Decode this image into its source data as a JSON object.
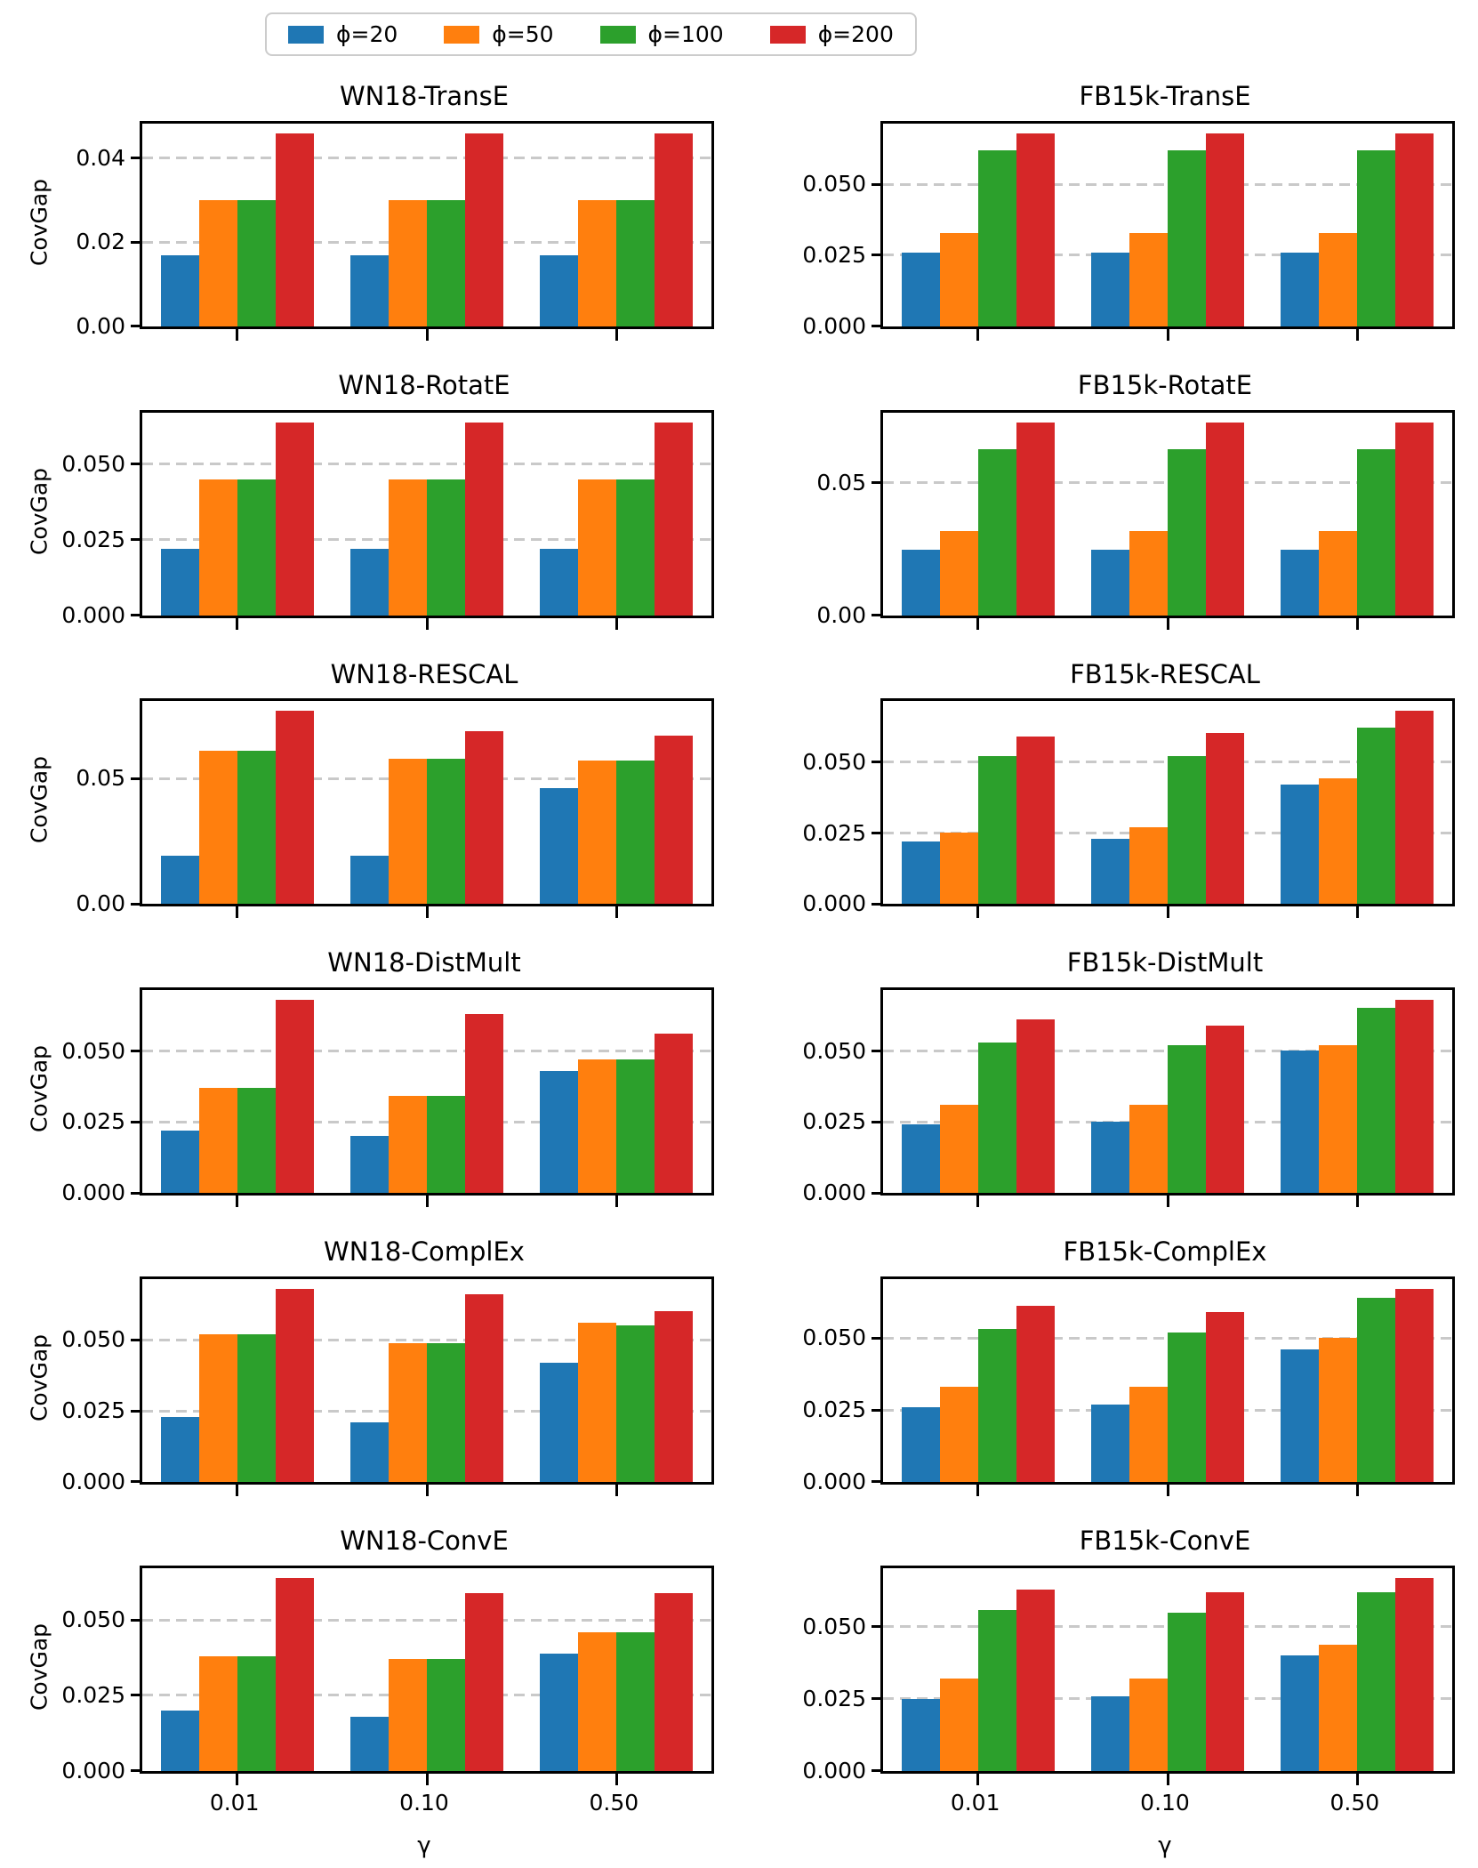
{
  "figure": {
    "ylabel": "CovGap",
    "xlabel": "γ",
    "grid_color": "#c9c9c9",
    "legend": [
      {
        "label": "ϕ=20",
        "color": "#1f77b4"
      },
      {
        "label": "ϕ=50",
        "color": "#ff7f0e"
      },
      {
        "label": "ϕ=100",
        "color": "#2ca02c"
      },
      {
        "label": "ϕ=200",
        "color": "#d62728"
      }
    ]
  },
  "chart_data": [
    {
      "type": "bar",
      "title": "WN18-TransE",
      "column": "left",
      "categories": [
        "0.01",
        "0.10",
        "0.50"
      ],
      "ylim": [
        0,
        0.0483
      ],
      "yticks": [
        0,
        0.02,
        0.04
      ],
      "ytick_labels": [
        "0.00",
        "0.02",
        "0.04"
      ],
      "series": [
        {
          "name": "ϕ=20",
          "color": "#1f77b4",
          "values": [
            0.017,
            0.017,
            0.017
          ]
        },
        {
          "name": "ϕ=50",
          "color": "#ff7f0e",
          "values": [
            0.03,
            0.03,
            0.03
          ]
        },
        {
          "name": "ϕ=100",
          "color": "#2ca02c",
          "values": [
            0.03,
            0.03,
            0.03
          ]
        },
        {
          "name": "ϕ=200",
          "color": "#d62728",
          "values": [
            0.046,
            0.046,
            0.046
          ]
        }
      ]
    },
    {
      "type": "bar",
      "title": "FB15k-TransE",
      "column": "right",
      "categories": [
        "0.01",
        "0.10",
        "0.50"
      ],
      "ylim": [
        0,
        0.0714
      ],
      "yticks": [
        0,
        0.025,
        0.05
      ],
      "ytick_labels": [
        "0.000",
        "0.025",
        "0.050"
      ],
      "series": [
        {
          "name": "ϕ=20",
          "color": "#1f77b4",
          "values": [
            0.026,
            0.026,
            0.026
          ]
        },
        {
          "name": "ϕ=50",
          "color": "#ff7f0e",
          "values": [
            0.033,
            0.033,
            0.033
          ]
        },
        {
          "name": "ϕ=100",
          "color": "#2ca02c",
          "values": [
            0.062,
            0.062,
            0.062
          ]
        },
        {
          "name": "ϕ=200",
          "color": "#d62728",
          "values": [
            0.068,
            0.068,
            0.068
          ]
        }
      ]
    },
    {
      "type": "bar",
      "title": "WN18-RotatE",
      "column": "left",
      "categories": [
        "0.01",
        "0.10",
        "0.50"
      ],
      "ylim": [
        0,
        0.0672
      ],
      "yticks": [
        0,
        0.025,
        0.05
      ],
      "ytick_labels": [
        "0.000",
        "0.025",
        "0.050"
      ],
      "series": [
        {
          "name": "ϕ=20",
          "color": "#1f77b4",
          "values": [
            0.022,
            0.022,
            0.022
          ]
        },
        {
          "name": "ϕ=50",
          "color": "#ff7f0e",
          "values": [
            0.045,
            0.045,
            0.045
          ]
        },
        {
          "name": "ϕ=100",
          "color": "#2ca02c",
          "values": [
            0.045,
            0.045,
            0.045
          ]
        },
        {
          "name": "ϕ=200",
          "color": "#d62728",
          "values": [
            0.064,
            0.064,
            0.064
          ]
        }
      ]
    },
    {
      "type": "bar",
      "title": "FB15k-RotatE",
      "column": "right",
      "categories": [
        "0.01",
        "0.10",
        "0.50"
      ],
      "ylim": [
        0,
        0.0767
      ],
      "yticks": [
        0,
        0.05
      ],
      "ytick_labels": [
        "0.00",
        "0.05"
      ],
      "series": [
        {
          "name": "ϕ=20",
          "color": "#1f77b4",
          "values": [
            0.025,
            0.025,
            0.025
          ]
        },
        {
          "name": "ϕ=50",
          "color": "#ff7f0e",
          "values": [
            0.032,
            0.032,
            0.032
          ]
        },
        {
          "name": "ϕ=100",
          "color": "#2ca02c",
          "values": [
            0.063,
            0.063,
            0.063
          ]
        },
        {
          "name": "ϕ=200",
          "color": "#d62728",
          "values": [
            0.073,
            0.073,
            0.073
          ]
        }
      ]
    },
    {
      "type": "bar",
      "title": "WN18-RESCAL",
      "column": "left",
      "categories": [
        "0.01",
        "0.10",
        "0.50"
      ],
      "ylim": [
        0,
        0.0809
      ],
      "yticks": [
        0,
        0.05
      ],
      "ytick_labels": [
        "0.00",
        "0.05"
      ],
      "series": [
        {
          "name": "ϕ=20",
          "color": "#1f77b4",
          "values": [
            0.019,
            0.019,
            0.046
          ]
        },
        {
          "name": "ϕ=50",
          "color": "#ff7f0e",
          "values": [
            0.061,
            0.058,
            0.057
          ]
        },
        {
          "name": "ϕ=100",
          "color": "#2ca02c",
          "values": [
            0.061,
            0.058,
            0.057
          ]
        },
        {
          "name": "ϕ=200",
          "color": "#d62728",
          "values": [
            0.077,
            0.069,
            0.067
          ]
        }
      ]
    },
    {
      "type": "bar",
      "title": "FB15k-RESCAL",
      "column": "right",
      "categories": [
        "0.01",
        "0.10",
        "0.50"
      ],
      "ylim": [
        0,
        0.0714
      ],
      "yticks": [
        0,
        0.025,
        0.05
      ],
      "ytick_labels": [
        "0.000",
        "0.025",
        "0.050"
      ],
      "series": [
        {
          "name": "ϕ=20",
          "color": "#1f77b4",
          "values": [
            0.022,
            0.023,
            0.042
          ]
        },
        {
          "name": "ϕ=50",
          "color": "#ff7f0e",
          "values": [
            0.025,
            0.027,
            0.044
          ]
        },
        {
          "name": "ϕ=100",
          "color": "#2ca02c",
          "values": [
            0.052,
            0.052,
            0.062
          ]
        },
        {
          "name": "ϕ=200",
          "color": "#d62728",
          "values": [
            0.059,
            0.06,
            0.068
          ]
        }
      ]
    },
    {
      "type": "bar",
      "title": "WN18-DistMult",
      "column": "left",
      "categories": [
        "0.01",
        "0.10",
        "0.50"
      ],
      "ylim": [
        0,
        0.0714
      ],
      "yticks": [
        0,
        0.025,
        0.05
      ],
      "ytick_labels": [
        "0.000",
        "0.025",
        "0.050"
      ],
      "series": [
        {
          "name": "ϕ=20",
          "color": "#1f77b4",
          "values": [
            0.022,
            0.02,
            0.043
          ]
        },
        {
          "name": "ϕ=50",
          "color": "#ff7f0e",
          "values": [
            0.037,
            0.034,
            0.047
          ]
        },
        {
          "name": "ϕ=100",
          "color": "#2ca02c",
          "values": [
            0.037,
            0.034,
            0.047
          ]
        },
        {
          "name": "ϕ=200",
          "color": "#d62728",
          "values": [
            0.068,
            0.063,
            0.056
          ]
        }
      ]
    },
    {
      "type": "bar",
      "title": "FB15k-DistMult",
      "column": "right",
      "categories": [
        "0.01",
        "0.10",
        "0.50"
      ],
      "ylim": [
        0,
        0.0714
      ],
      "yticks": [
        0,
        0.025,
        0.05
      ],
      "ytick_labels": [
        "0.000",
        "0.025",
        "0.050"
      ],
      "series": [
        {
          "name": "ϕ=20",
          "color": "#1f77b4",
          "values": [
            0.024,
            0.025,
            0.05
          ]
        },
        {
          "name": "ϕ=50",
          "color": "#ff7f0e",
          "values": [
            0.031,
            0.031,
            0.052
          ]
        },
        {
          "name": "ϕ=100",
          "color": "#2ca02c",
          "values": [
            0.053,
            0.052,
            0.065
          ]
        },
        {
          "name": "ϕ=200",
          "color": "#d62728",
          "values": [
            0.061,
            0.059,
            0.068
          ]
        }
      ]
    },
    {
      "type": "bar",
      "title": "WN18-ComplEx",
      "column": "left",
      "categories": [
        "0.01",
        "0.10",
        "0.50"
      ],
      "ylim": [
        0,
        0.0714
      ],
      "yticks": [
        0,
        0.025,
        0.05
      ],
      "ytick_labels": [
        "0.000",
        "0.025",
        "0.050"
      ],
      "series": [
        {
          "name": "ϕ=20",
          "color": "#1f77b4",
          "values": [
            0.023,
            0.021,
            0.042
          ]
        },
        {
          "name": "ϕ=50",
          "color": "#ff7f0e",
          "values": [
            0.052,
            0.049,
            0.056
          ]
        },
        {
          "name": "ϕ=100",
          "color": "#2ca02c",
          "values": [
            0.052,
            0.049,
            0.055
          ]
        },
        {
          "name": "ϕ=200",
          "color": "#d62728",
          "values": [
            0.068,
            0.066,
            0.06
          ]
        }
      ]
    },
    {
      "type": "bar",
      "title": "FB15k-ComplEx",
      "column": "right",
      "categories": [
        "0.01",
        "0.10",
        "0.50"
      ],
      "ylim": [
        0,
        0.0704
      ],
      "yticks": [
        0,
        0.025,
        0.05
      ],
      "ytick_labels": [
        "0.000",
        "0.025",
        "0.050"
      ],
      "series": [
        {
          "name": "ϕ=20",
          "color": "#1f77b4",
          "values": [
            0.026,
            0.027,
            0.046
          ]
        },
        {
          "name": "ϕ=50",
          "color": "#ff7f0e",
          "values": [
            0.033,
            0.033,
            0.05
          ]
        },
        {
          "name": "ϕ=100",
          "color": "#2ca02c",
          "values": [
            0.053,
            0.052,
            0.064
          ]
        },
        {
          "name": "ϕ=200",
          "color": "#d62728",
          "values": [
            0.061,
            0.059,
            0.067
          ]
        }
      ]
    },
    {
      "type": "bar",
      "title": "WN18-ConvE",
      "column": "left",
      "categories": [
        "0.01",
        "0.10",
        "0.50"
      ],
      "ylim": [
        0,
        0.0672
      ],
      "yticks": [
        0,
        0.025,
        0.05
      ],
      "ytick_labels": [
        "0.000",
        "0.025",
        "0.050"
      ],
      "series": [
        {
          "name": "ϕ=20",
          "color": "#1f77b4",
          "values": [
            0.02,
            0.018,
            0.039
          ]
        },
        {
          "name": "ϕ=50",
          "color": "#ff7f0e",
          "values": [
            0.038,
            0.037,
            0.046
          ]
        },
        {
          "name": "ϕ=100",
          "color": "#2ca02c",
          "values": [
            0.038,
            0.037,
            0.046
          ]
        },
        {
          "name": "ϕ=200",
          "color": "#d62728",
          "values": [
            0.064,
            0.059,
            0.059
          ]
        }
      ]
    },
    {
      "type": "bar",
      "title": "FB15k-ConvE",
      "column": "right",
      "categories": [
        "0.01",
        "0.10",
        "0.50"
      ],
      "ylim": [
        0,
        0.0704
      ],
      "yticks": [
        0,
        0.025,
        0.05
      ],
      "ytick_labels": [
        "0.000",
        "0.025",
        "0.050"
      ],
      "series": [
        {
          "name": "ϕ=20",
          "color": "#1f77b4",
          "values": [
            0.025,
            0.026,
            0.04
          ]
        },
        {
          "name": "ϕ=50",
          "color": "#ff7f0e",
          "values": [
            0.032,
            0.032,
            0.044
          ]
        },
        {
          "name": "ϕ=100",
          "color": "#2ca02c",
          "values": [
            0.056,
            0.055,
            0.062
          ]
        },
        {
          "name": "ϕ=200",
          "color": "#d62728",
          "values": [
            0.063,
            0.062,
            0.067
          ]
        }
      ]
    }
  ]
}
